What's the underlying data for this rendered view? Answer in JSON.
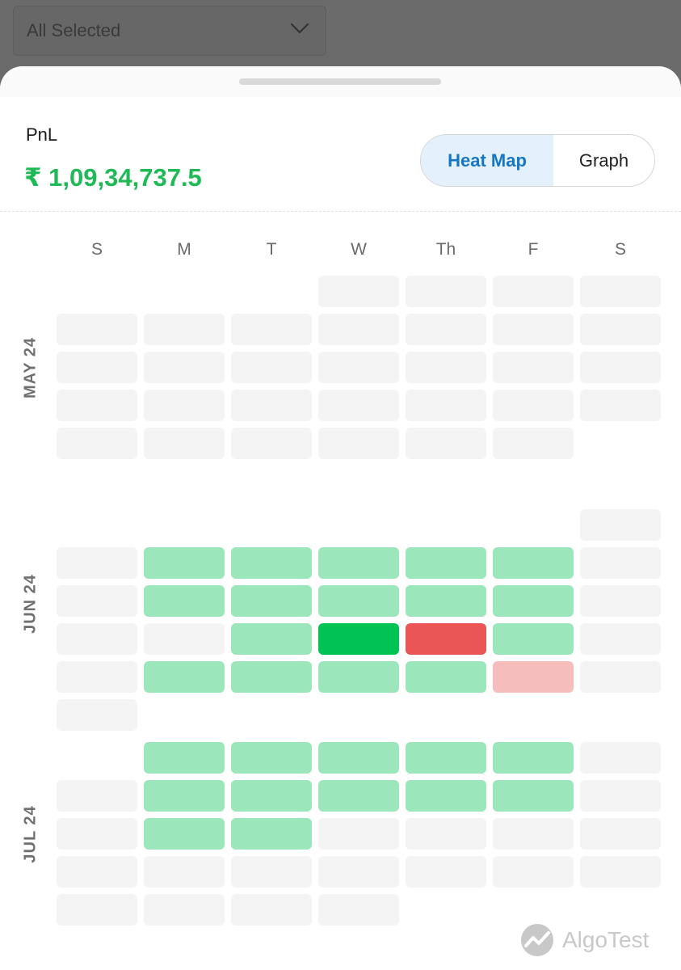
{
  "filter": {
    "value": "All Selected",
    "icon": "chevron-down-icon"
  },
  "pnl": {
    "label": "PnL",
    "value": "₹ 1,09,34,737.5",
    "color": "#1fba56"
  },
  "view_toggle": {
    "heat_label": "Heat Map",
    "graph_label": "Graph",
    "selected": "Heat Map"
  },
  "weekdays": [
    "S",
    "M",
    "T",
    "W",
    "Th",
    "F",
    "S"
  ],
  "legend_colors": {
    "empty": "#f4f4f4",
    "profit_light": "#9ce6bc",
    "profit_strong": "#00c353",
    "loss_light": "#f6bdbd",
    "loss_strong": "#ea5555"
  },
  "months": [
    {
      "label": "MAY 24",
      "weeks": [
        [
          null,
          null,
          null,
          "e",
          "e",
          "e",
          "e"
        ],
        [
          "e",
          "e",
          "e",
          "e",
          "e",
          "e",
          "e"
        ],
        [
          "e",
          "e",
          "e",
          "e",
          "e",
          "e",
          "e"
        ],
        [
          "e",
          "e",
          "e",
          "e",
          "e",
          "e",
          "e"
        ],
        [
          "e",
          "e",
          "e",
          "e",
          "e",
          "e",
          null
        ]
      ]
    },
    {
      "label": "JUN 24",
      "weeks": [
        [
          null,
          null,
          null,
          null,
          null,
          null,
          "e"
        ],
        [
          "e",
          "pl",
          "pl",
          "pl",
          "pl",
          "pl",
          "e"
        ],
        [
          "e",
          "pl",
          "pl",
          "pl",
          "pl",
          "pl",
          "e"
        ],
        [
          "e",
          "e",
          "pl",
          "ps",
          "ls",
          "pl",
          "e"
        ],
        [
          "e",
          "pl",
          "pl",
          "pl",
          "pl",
          "ll",
          "e"
        ],
        [
          "e",
          null,
          null,
          null,
          null,
          null,
          null
        ]
      ]
    },
    {
      "label": "JUL 24",
      "weeks": [
        [
          null,
          "pl",
          "pl",
          "pl",
          "pl",
          "pl",
          "e"
        ],
        [
          "e",
          "pl",
          "pl",
          "pl",
          "pl",
          "pl",
          "e"
        ],
        [
          "e",
          "pl",
          "pl",
          "e",
          "e",
          "e",
          "e"
        ],
        [
          "e",
          "e",
          "e",
          "e",
          "e",
          "e",
          "e"
        ],
        [
          "e",
          "e",
          "e",
          "e",
          null,
          null,
          null
        ]
      ]
    }
  ],
  "brand": {
    "name": "AlgoTest",
    "icon": "algotest-logo-icon"
  }
}
